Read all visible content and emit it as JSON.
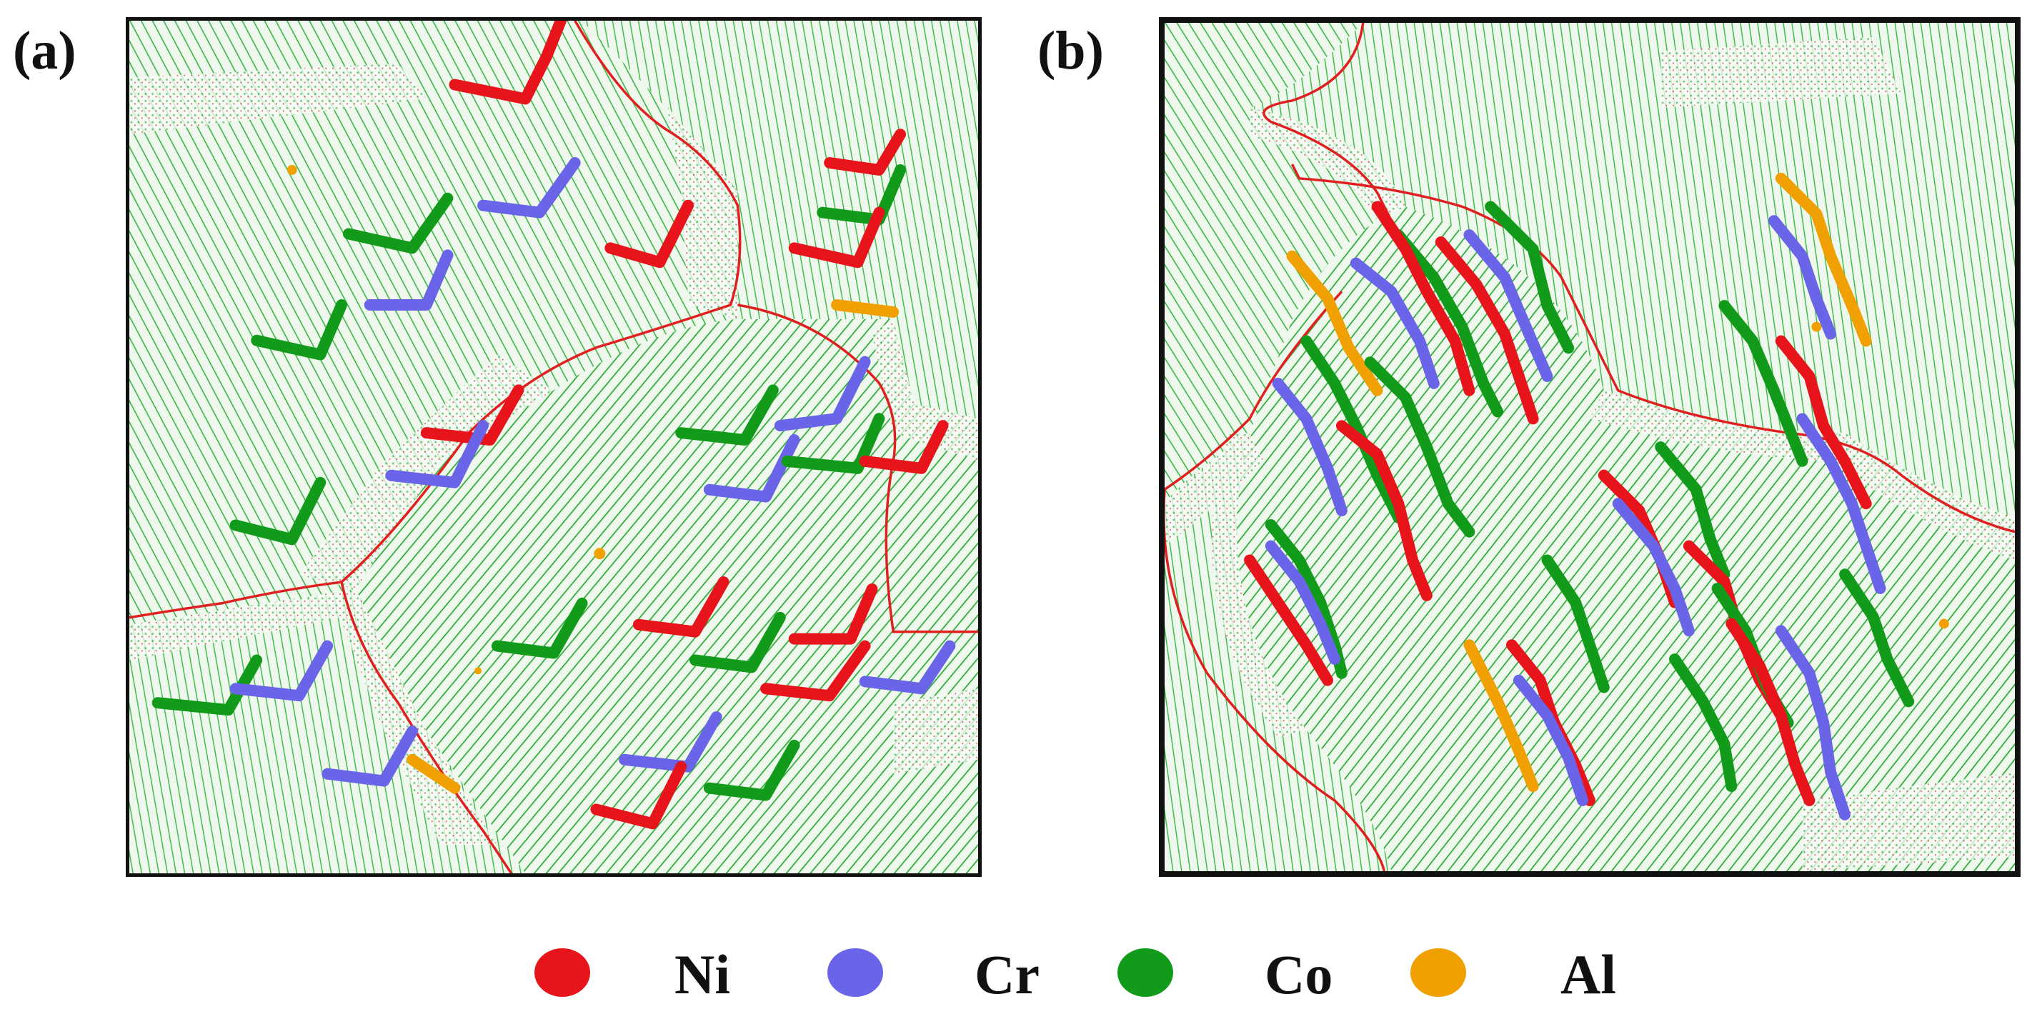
{
  "panels": [
    {
      "label": "(a)"
    },
    {
      "label": "(b)"
    }
  ],
  "legend": [
    {
      "element": "Ni",
      "color": "#e8141b"
    },
    {
      "element": "Cr",
      "color": "#6a64e8"
    },
    {
      "element": "Co",
      "color": "#129a1a"
    },
    {
      "element": "Al",
      "color": "#f0a000"
    }
  ],
  "colors": {
    "lattice": "#2fae3a",
    "grain_boundary": "#e02020",
    "disorder": "#ffffff",
    "frame": "#111111"
  }
}
